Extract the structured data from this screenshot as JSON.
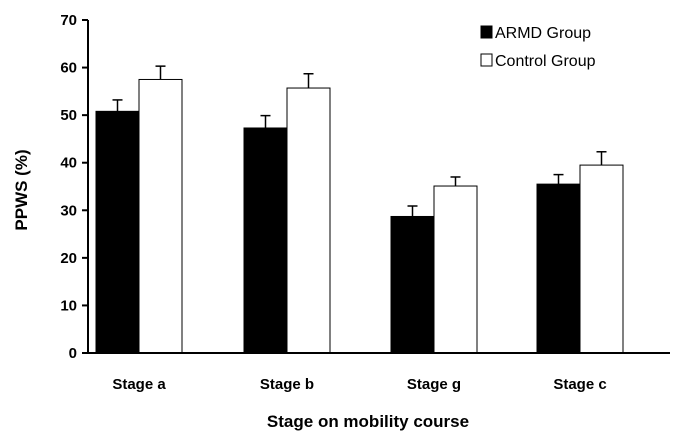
{
  "chart_data": {
    "type": "bar",
    "title": "",
    "xlabel": "Stage on mobility course",
    "ylabel": "PPWS (%)",
    "ylim": [
      0,
      70
    ],
    "yticks": [
      0,
      10,
      20,
      30,
      40,
      50,
      60,
      70
    ],
    "categories": [
      "Stage a",
      "Stage b",
      "Stage g",
      "Stage c"
    ],
    "series": [
      {
        "name": "ARMD Group",
        "color": "#000000",
        "values": [
          50.8,
          47.3,
          28.7,
          35.5
        ],
        "errors": [
          2.4,
          2.6,
          2.2,
          2.0
        ]
      },
      {
        "name": "Control Group",
        "color": "#ffffff",
        "values": [
          57.5,
          55.7,
          35.1,
          39.5
        ],
        "errors": [
          2.8,
          3.0,
          1.9,
          2.8
        ]
      }
    ],
    "legend_position": "top-right",
    "grid": false
  }
}
